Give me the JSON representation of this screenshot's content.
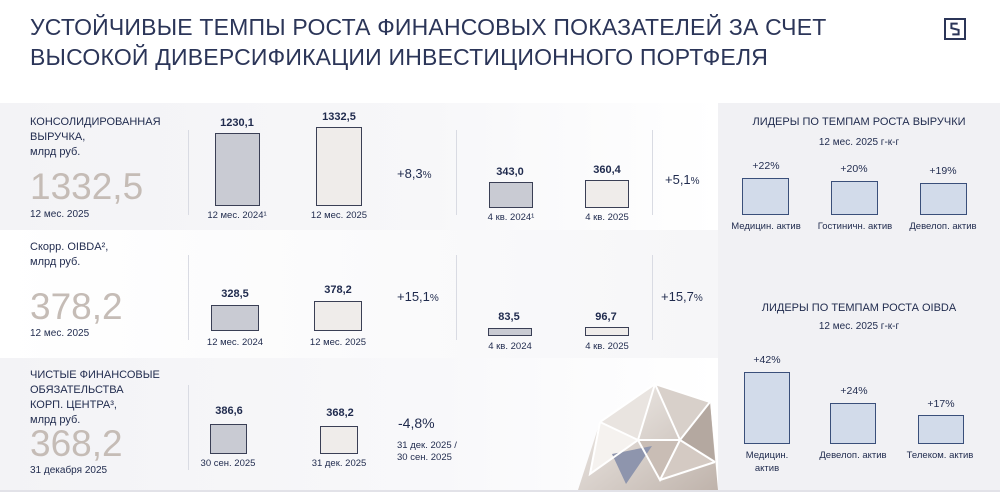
{
  "header": {
    "title_line1": "УСТОЙЧИВЫЕ ТЕМПЫ РОСТА ФИНАНСОВЫХ ПОКАЗАТЕЛЕЙ ЗА СЧЕТ",
    "title_line2": "ВЫСОКОЙ ДИВЕРСИФИКАЦИИ ИНВЕСТИЦИОННОГО ПОРТФЕЛЯ",
    "logo_icon": "company-logo-icon"
  },
  "rows": [
    {
      "label_lines": [
        "КОНСОЛИДИРОВАННАЯ",
        "ВЫРУЧКА,",
        "млрд руб."
      ],
      "big_value": "1332,5",
      "period": "12 мес. 2025",
      "annual": {
        "a_value": "1230,1",
        "a_label": "12 мес. 2024¹",
        "a_num": 1230.1,
        "b_value": "1332,5",
        "b_label": "12 мес. 2025",
        "b_num": 1332.5,
        "change": "+8,3",
        "change_unit": "%"
      },
      "quarter": {
        "a_value": "343,0",
        "a_label": "4 кв. 2024¹",
        "a_num": 343.0,
        "b_value": "360,4",
        "b_label": "4 кв. 2025",
        "b_num": 360.4,
        "change": "+5,1",
        "change_unit": "%"
      }
    },
    {
      "label_lines": [
        "Скорр. OIBDA²,",
        "млрд руб."
      ],
      "big_value": "378,2",
      "period": "12 мес. 2025",
      "annual": {
        "a_value": "328,5",
        "a_label": "12 мес. 2024",
        "a_num": 328.5,
        "b_value": "378,2",
        "b_label": "12 мес. 2025",
        "b_num": 378.2,
        "change": "+15,1",
        "change_unit": "%"
      },
      "quarter": {
        "a_value": "83,5",
        "a_label": "4 кв. 2024",
        "a_num": 83.5,
        "b_value": "96,7",
        "b_label": "4 кв. 2025",
        "b_num": 96.7,
        "change": "+15,7",
        "change_unit": "%"
      }
    },
    {
      "label_lines": [
        "ЧИСТЫЕ ФИНАНСОВЫЕ",
        "ОБЯЗАТЕЛЬСТВА",
        "КОРП. ЦЕНТРА³,",
        "млрд руб."
      ],
      "big_value": "368,2",
      "period": "31 декабря 2025",
      "annual": {
        "a_value": "386,6",
        "a_label": "30 сен. 2025",
        "a_num": 386.6,
        "b_value": "368,2",
        "b_label": "31 дек. 2025",
        "b_num": 368.2,
        "change": "-4,8%",
        "change_note_line1": "31 дек. 2025 /",
        "change_note_line2": "30 сен. 2025"
      }
    }
  ],
  "leaders_revenue": {
    "title": "ЛИДЕРЫ ПО ТЕМПАМ РОСТА ВЫРУЧКИ",
    "subtitle": "12 мес. 2025 г-к-г",
    "items": [
      {
        "value": "+22%",
        "label": "Медицин. актив",
        "num": 22
      },
      {
        "value": "+20%",
        "label": "Гостиничн. актив",
        "num": 20
      },
      {
        "value": "+19%",
        "label": "Девелоп. актив",
        "num": 19
      }
    ]
  },
  "leaders_oibda": {
    "title": "ЛИДЕРЫ ПО ТЕМПАМ РОСТА OIBDA",
    "subtitle": "12 мес. 2025 г-к-г",
    "items": [
      {
        "value": "+42%",
        "label_line1": "Медицин.",
        "label_line2": "актив",
        "num": 42
      },
      {
        "value": "+24%",
        "label_line1": "Девелоп. актив",
        "label_line2": "",
        "num": 24
      },
      {
        "value": "+17%",
        "label_line1": "Телеком. актив",
        "label_line2": "",
        "num": 17
      }
    ]
  },
  "colors": {
    "navy": "#1f2a4d",
    "big_number": "#c5bcb6",
    "bar_prior": "#c9cbd3",
    "bar_current": "#efecea",
    "leader_bar": "#d2dbea",
    "panel": "#f1f1f4"
  }
}
